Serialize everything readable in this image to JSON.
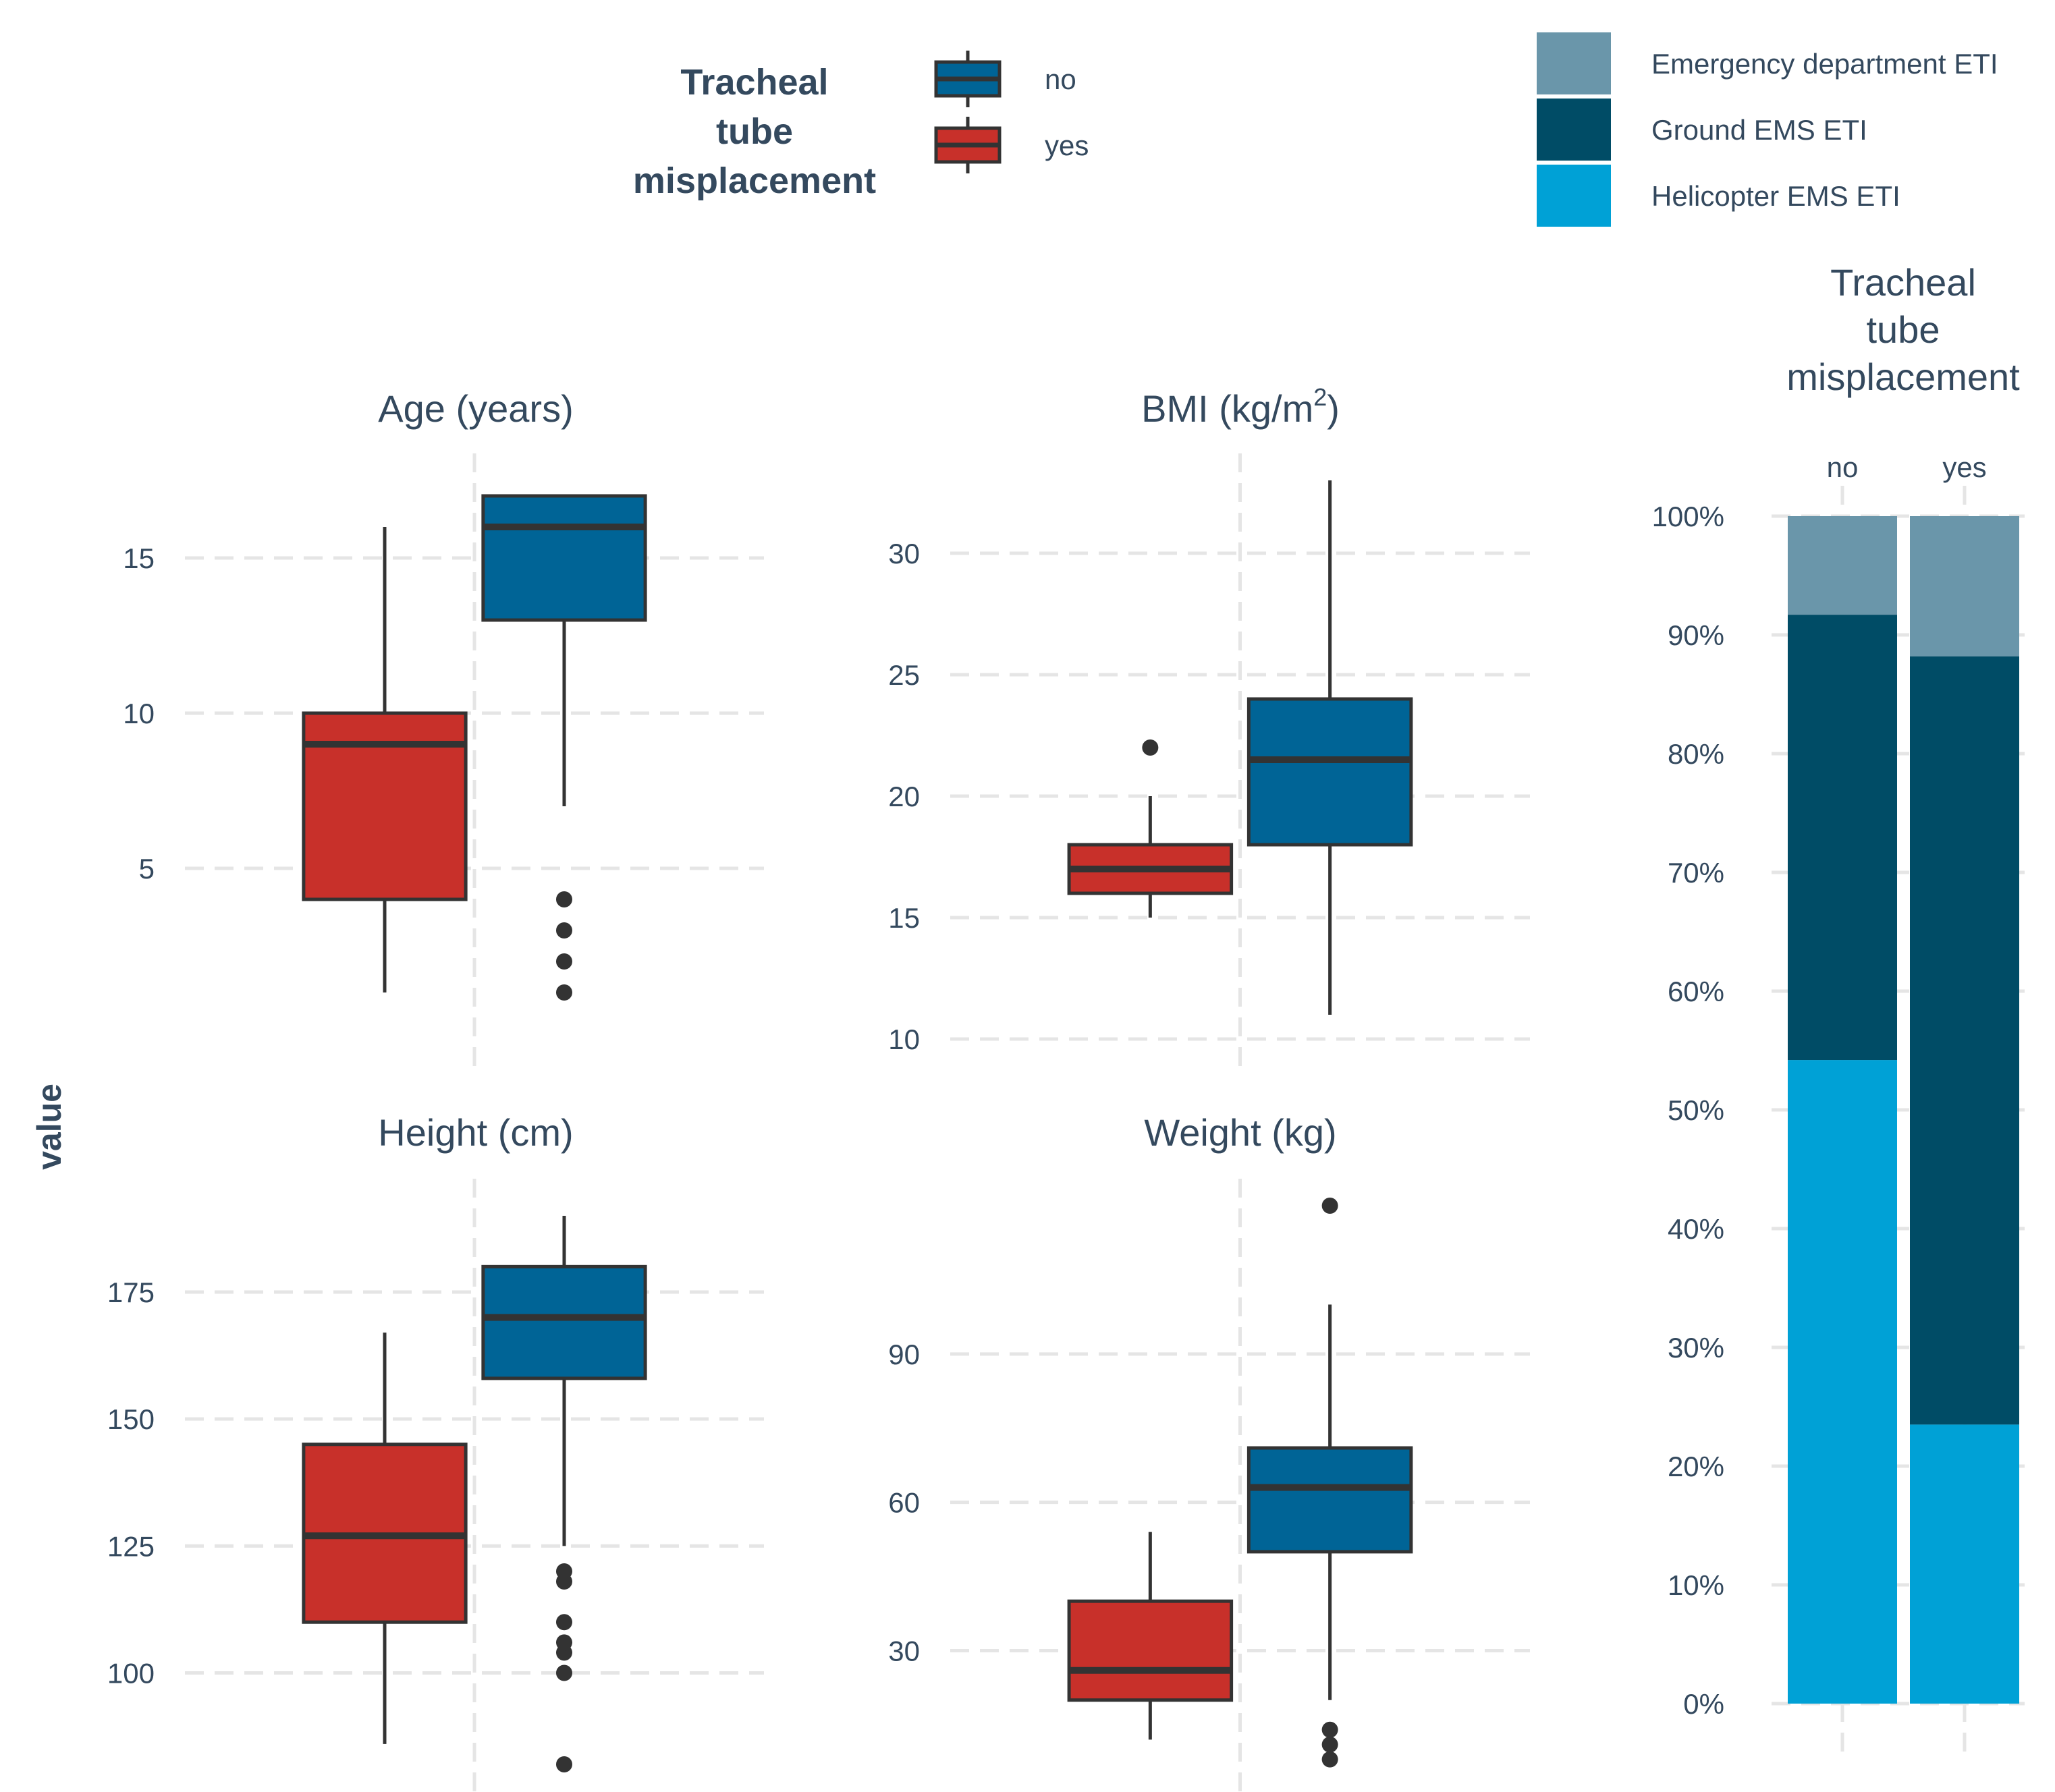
{
  "colors": {
    "no": "#006496",
    "yes": "#c8302a",
    "outline": "#333333",
    "grid": "#e5e5e5",
    "text": "#34495e",
    "Emergency department ETI": "#6a96aa",
    "Ground EMS ETI": "#004c66",
    "Helicopter EMS ETI": "#00a1d6"
  },
  "legend_boxplot": {
    "title_lines": [
      "Tracheal",
      "tube",
      "misplacement"
    ],
    "items": [
      "no",
      "yes"
    ]
  },
  "legend_bar": {
    "items": [
      "Emergency department ETI",
      "Ground EMS ETI",
      "Helicopter EMS ETI"
    ]
  },
  "y_axis_label": "value",
  "chart_data": [
    {
      "type": "box",
      "panel": "age",
      "title": "Age (years)",
      "ylim": [
        -0.5,
        17.5
      ],
      "yticks": [
        5,
        10,
        15
      ],
      "tick_labels": [
        "5",
        "10",
        "15"
      ],
      "groups": [
        {
          "name": "yes",
          "lower_whisker": 1,
          "q1": 4,
          "median": 9,
          "q3": 10,
          "upper_whisker": 16,
          "outliers": []
        },
        {
          "name": "no",
          "lower_whisker": 7,
          "q1": 13,
          "median": 16,
          "q3": 17,
          "upper_whisker": 17,
          "outliers": [
            1,
            2,
            3,
            4
          ]
        }
      ]
    },
    {
      "type": "box",
      "panel": "bmi",
      "title": "BMI (kg/m²)",
      "title_parts": [
        "BMI (kg/m",
        "2",
        ")"
      ],
      "ylim": [
        10,
        33
      ],
      "yticks": [
        10,
        15,
        20,
        25,
        30
      ],
      "tick_labels": [
        "10",
        "15",
        "20",
        "25",
        "30"
      ],
      "groups": [
        {
          "name": "yes",
          "lower_whisker": 15,
          "q1": 16,
          "median": 17,
          "q3": 18,
          "upper_whisker": 20,
          "outliers": [
            22
          ]
        },
        {
          "name": "no",
          "lower_whisker": 11,
          "q1": 18,
          "median": 21.5,
          "q3": 24,
          "upper_whisker": 33,
          "outliers": []
        }
      ]
    },
    {
      "type": "box",
      "panel": "height",
      "title": "Height (cm)",
      "ylim": [
        82,
        192
      ],
      "yticks": [
        100,
        125,
        150,
        175
      ],
      "tick_labels": [
        "100",
        "125",
        "150",
        "175"
      ],
      "groups": [
        {
          "name": "yes",
          "lower_whisker": 86,
          "q1": 110,
          "median": 127,
          "q3": 145,
          "upper_whisker": 167,
          "outliers": []
        },
        {
          "name": "no",
          "lower_whisker": 125,
          "q1": 158,
          "median": 170,
          "q3": 180,
          "upper_whisker": 190,
          "outliers": [
            82,
            100,
            104,
            106,
            110,
            118,
            120
          ]
        }
      ]
    },
    {
      "type": "box",
      "panel": "weight",
      "title": "Weight (kg)",
      "ylim": [
        7,
        120
      ],
      "yticks": [
        30,
        60,
        90
      ],
      "tick_labels": [
        "30",
        "60",
        "90"
      ],
      "groups": [
        {
          "name": "yes",
          "lower_whisker": 12,
          "q1": 20,
          "median": 26,
          "q3": 40,
          "upper_whisker": 54,
          "outliers": []
        },
        {
          "name": "no",
          "lower_whisker": 20,
          "q1": 50,
          "median": 63,
          "q3": 71,
          "upper_whisker": 100,
          "outliers": [
            8,
            11,
            14,
            120
          ]
        }
      ]
    },
    {
      "type": "bar",
      "stacked": true,
      "percent": true,
      "title": "Tracheal tube misplacement",
      "title_lines": [
        "Tracheal",
        "tube",
        "misplacement"
      ],
      "categories": [
        "no",
        "yes"
      ],
      "ylim": [
        0,
        100
      ],
      "yticks": [
        0,
        10,
        20,
        30,
        40,
        50,
        60,
        70,
        80,
        90,
        100
      ],
      "tick_labels": [
        "0%",
        "10%",
        "20%",
        "30%",
        "40%",
        "50%",
        "60%",
        "70%",
        "80%",
        "90%",
        "100%"
      ],
      "series": [
        {
          "name": "Helicopter EMS ETI",
          "values": [
            54.2,
            23.5
          ]
        },
        {
          "name": "Ground EMS ETI",
          "values": [
            37.5,
            64.7
          ]
        },
        {
          "name": "Emergency department ETI",
          "values": [
            8.3,
            11.8
          ]
        }
      ]
    }
  ]
}
